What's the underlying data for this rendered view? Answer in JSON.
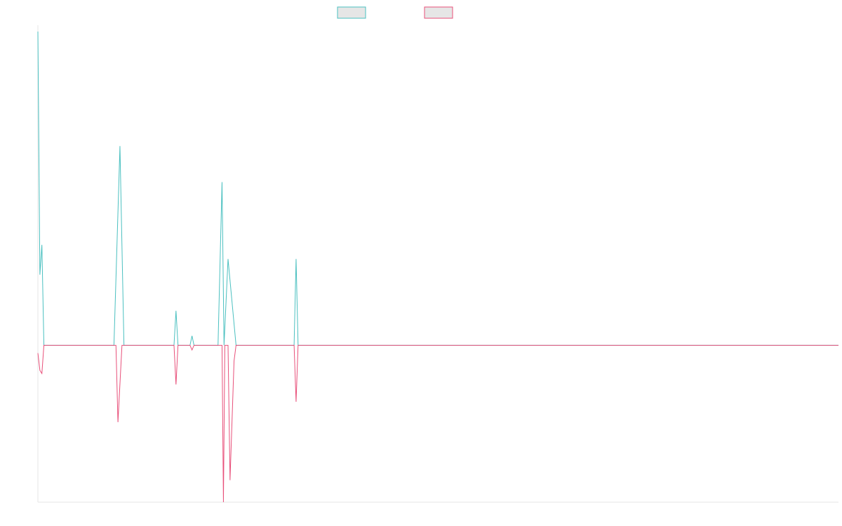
{
  "chart_data": {
    "type": "line",
    "title": "",
    "xlabel": "",
    "ylabel": "",
    "grid": false,
    "legend_position": "top-center",
    "xlim": [
      0,
      400
    ],
    "ylim": [
      -1,
      2.04
    ],
    "series": [
      {
        "name": "",
        "color": "#4bc0c0",
        "legend_fill": "#e6e6e6",
        "points": [
          [
            0,
            2
          ],
          [
            1,
            0.45
          ],
          [
            2,
            0.64
          ],
          [
            3,
            0
          ],
          [
            38,
            0
          ],
          [
            41,
            1.27
          ],
          [
            43,
            0
          ],
          [
            68,
            0
          ],
          [
            69,
            0.22
          ],
          [
            70,
            0
          ],
          [
            76,
            0
          ],
          [
            77,
            0.06
          ],
          [
            78,
            0
          ],
          [
            90,
            0
          ],
          [
            92,
            1.04
          ],
          [
            93,
            0
          ],
          [
            95,
            0.55
          ],
          [
            99,
            0
          ],
          [
            128,
            0
          ],
          [
            129,
            0.55
          ],
          [
            130,
            0
          ],
          [
            400,
            0
          ]
        ]
      },
      {
        "name": "",
        "color": "#e8507a",
        "legend_fill": "#e6e6e6",
        "points": [
          [
            0,
            -0.05
          ],
          [
            1,
            -0.16
          ],
          [
            2,
            -0.18
          ],
          [
            3,
            0
          ],
          [
            39,
            0
          ],
          [
            40,
            -0.49
          ],
          [
            42,
            0
          ],
          [
            68,
            0
          ],
          [
            69,
            -0.25
          ],
          [
            70,
            0
          ],
          [
            76,
            0
          ],
          [
            77,
            -0.03
          ],
          [
            78,
            0
          ],
          [
            92,
            0
          ],
          [
            92.7,
            -1
          ],
          [
            93.4,
            0
          ],
          [
            95,
            0
          ],
          [
            96,
            -0.86
          ],
          [
            98,
            -0.1
          ],
          [
            99,
            0
          ],
          [
            128,
            0
          ],
          [
            129,
            -0.36
          ],
          [
            130,
            0
          ],
          [
            400,
            0
          ]
        ]
      }
    ]
  }
}
